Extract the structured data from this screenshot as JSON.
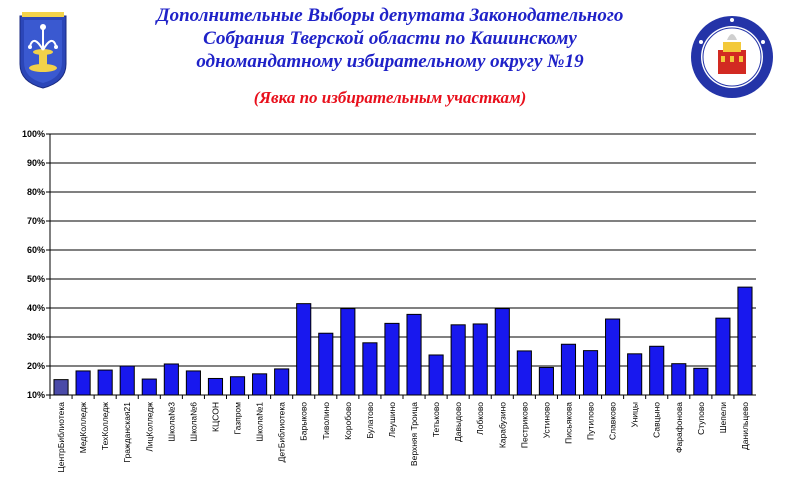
{
  "header": {
    "title_lines": [
      "Дополнительные Выборы депутата Законодательного",
      "Собрания Тверской области по Кашинскому",
      "одномандатному избирательному округу №19"
    ],
    "subtitle": "(Явка по избирательным участкам)",
    "title_color": "#1f22c8",
    "subtitle_color": "#e8101c"
  },
  "logos": {
    "left": "coat-of-arms-icon",
    "right": "election-commission-emblem-icon"
  },
  "chart_data": {
    "type": "bar",
    "categories": [
      "ЦентрБиблиотека",
      "МедКолледж",
      "ТехКолледж",
      "Гражданская21",
      "ЛицКолледж",
      "Школа№3",
      "Школа№6",
      "КЦСОН",
      "Газпром",
      "Школа№1",
      "ДетБиблиотека",
      "Барыково",
      "Тиволино",
      "Коробово",
      "Булатово",
      "Леушино",
      "Верхняя Троица",
      "Тетьково",
      "Давыдово",
      "Лобково",
      "Карабузино",
      "Пестриково",
      "Устиново",
      "Письякова",
      "Путилово",
      "Славково",
      "Уницы",
      "Савцыно",
      "Фарафонова",
      "Ступово",
      "Шепели",
      "Данильцево"
    ],
    "values": [
      15.3,
      18.3,
      18.6,
      20,
      15.5,
      20.7,
      18.3,
      15.7,
      16.3,
      17.3,
      19,
      41.5,
      31.3,
      39.8,
      28,
      34.7,
      37.8,
      23.8,
      34.2,
      34.5,
      39.8,
      25.2,
      19.5,
      27.5,
      25.3,
      36.2,
      24.2,
      26.8,
      20.8,
      19.2,
      36.5,
      47.2
    ],
    "highlight_index": 0,
    "bar_color": "#1818ee",
    "highlight_color": "#4a4aa8",
    "ylim": [
      10,
      100
    ],
    "yticks": [
      "10%",
      "20%",
      "30%",
      "40%",
      "50%",
      "60%",
      "70%",
      "80%",
      "90%",
      "100%"
    ],
    "grid": true,
    "legend": "none"
  }
}
